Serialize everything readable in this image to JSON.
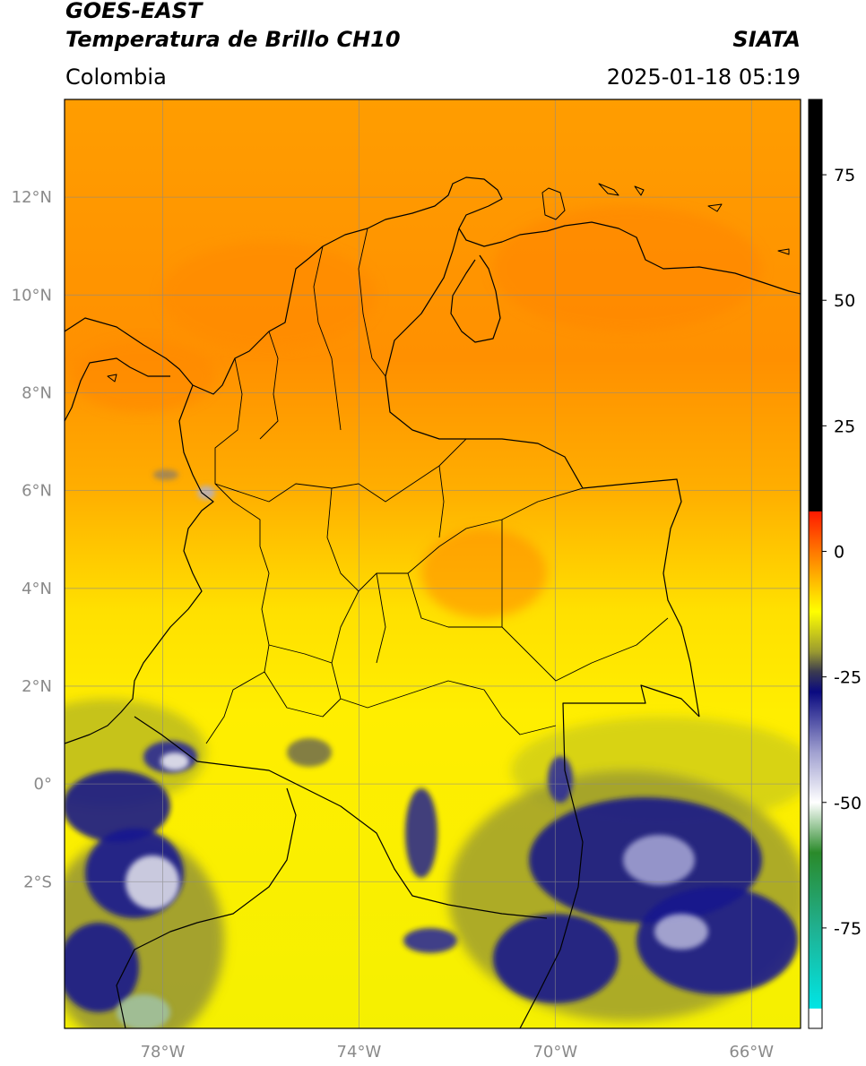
{
  "header": {
    "satellite": "GOES-EAST",
    "product": "Temperatura de Brillo CH10",
    "brand": "SIATA",
    "region": "Colombia",
    "datetime": "2025-01-18 05:19"
  },
  "map": {
    "lon_range": [
      -80,
      -65
    ],
    "lat_range": [
      -5,
      14
    ],
    "lat_ticks": [
      {
        "value": 12,
        "label": "12°N"
      },
      {
        "value": 10,
        "label": "10°N"
      },
      {
        "value": 8,
        "label": "8°N"
      },
      {
        "value": 6,
        "label": "6°N"
      },
      {
        "value": 4,
        "label": "4°N"
      },
      {
        "value": 2,
        "label": "2°N"
      },
      {
        "value": 0,
        "label": "0°"
      },
      {
        "value": -2,
        "label": "2°S"
      }
    ],
    "lon_ticks": [
      {
        "value": -78,
        "label": "78°W"
      },
      {
        "value": -74,
        "label": "74°W"
      },
      {
        "value": -70,
        "label": "70°W"
      },
      {
        "value": -66,
        "label": "66°W"
      }
    ],
    "gridlines": true
  },
  "colorbar": {
    "range": [
      -95,
      90
    ],
    "ticks": [
      {
        "value": 75,
        "label": "75"
      },
      {
        "value": 50,
        "label": "50"
      },
      {
        "value": 25,
        "label": "25"
      },
      {
        "value": 0,
        "label": "0"
      },
      {
        "value": -25,
        "label": "-25"
      },
      {
        "value": -50,
        "label": "-50"
      },
      {
        "value": -75,
        "label": "-75"
      }
    ],
    "stops": [
      {
        "value": 90,
        "color": "#000000"
      },
      {
        "value": 8,
        "color": "#000000"
      },
      {
        "value": 7.9,
        "color": "#ff1a00"
      },
      {
        "value": 0,
        "color": "#ff7700"
      },
      {
        "value": -12,
        "color": "#ffff00"
      },
      {
        "value": -20,
        "color": "#9a9a30"
      },
      {
        "value": -24,
        "color": "#3a3a50"
      },
      {
        "value": -28,
        "color": "#0a0a80"
      },
      {
        "value": -40,
        "color": "#a0a0d0"
      },
      {
        "value": -50,
        "color": "#ffffff"
      },
      {
        "value": -60,
        "color": "#2a8a2a"
      },
      {
        "value": -75,
        "color": "#20b090"
      },
      {
        "value": -91,
        "color": "#00e5e5"
      },
      {
        "value": -91.1,
        "color": "#ffffff"
      },
      {
        "value": -95,
        "color": "#ffffff"
      }
    ]
  }
}
